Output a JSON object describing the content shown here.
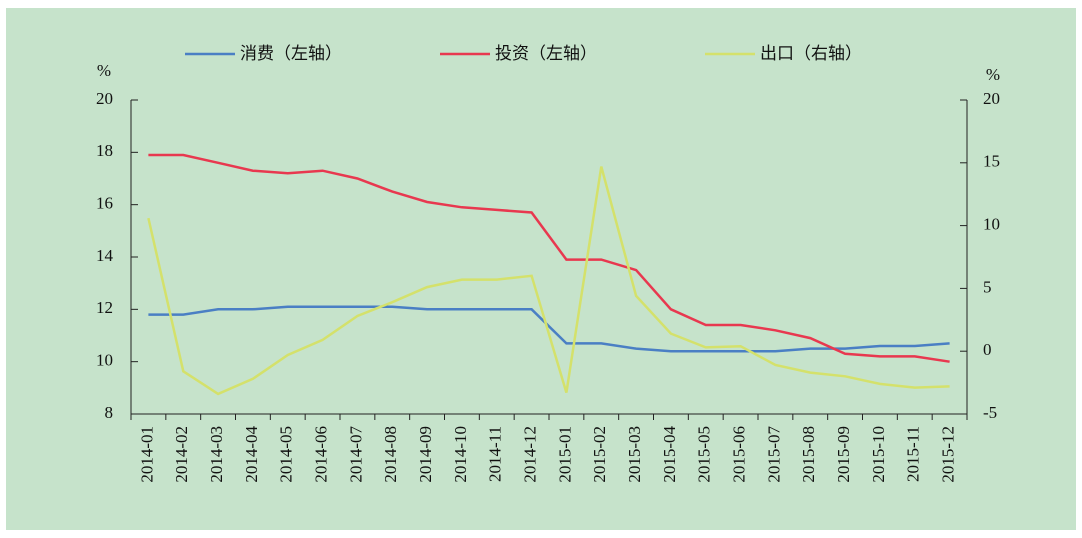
{
  "chart_data": {
    "type": "line",
    "categories": [
      "2014-01",
      "2014-02",
      "2014-03",
      "2014-04",
      "2014-05",
      "2014-06",
      "2014-07",
      "2014-08",
      "2014-09",
      "2014-10",
      "2014-11",
      "2014-12",
      "2015-01",
      "2015-02",
      "2015-03",
      "2015-04",
      "2015-05",
      "2015-06",
      "2015-07",
      "2015-08",
      "2015-09",
      "2015-10",
      "2015-11",
      "2015-12"
    ],
    "series": [
      {
        "name": "消费（左轴）",
        "color": "#4a7fc4",
        "values": [
          11.8,
          11.8,
          12.0,
          12.0,
          12.1,
          12.1,
          12.1,
          12.1,
          12.0,
          12.0,
          12.0,
          12.0,
          10.7,
          10.7,
          10.5,
          10.4,
          10.4,
          10.4,
          10.4,
          10.5,
          10.5,
          10.6,
          10.6,
          10.7
        ]
      },
      {
        "name": "投资（左轴）",
        "color": "#e8384f",
        "values": [
          17.9,
          17.9,
          17.6,
          17.3,
          17.2,
          17.3,
          17.0,
          16.5,
          16.1,
          15.9,
          15.8,
          15.7,
          13.9,
          13.9,
          13.5,
          12.0,
          11.4,
          11.4,
          11.2,
          10.9,
          10.3,
          10.2,
          10.2,
          10.0
        ]
      },
      {
        "name": "出口（右轴）",
        "color": "#d4e16b",
        "axis": "y2",
        "values": [
          10.6,
          -1.6,
          -3.4,
          -2.2,
          -0.3,
          0.9,
          2.8,
          3.9,
          5.1,
          5.7,
          5.7,
          6.0,
          -3.3,
          14.7,
          4.4,
          1.4,
          0.3,
          0.4,
          -1.1,
          -1.7,
          -2.0,
          -2.6,
          -2.9,
          -2.8
        ]
      }
    ],
    "y_unit": "%",
    "y2_unit": "%",
    "ylim": [
      8,
      20
    ],
    "yticks": [
      8,
      10,
      12,
      14,
      16,
      18,
      20
    ],
    "y2lim": [
      -5,
      20
    ],
    "y2ticks": [
      -5,
      0,
      5,
      10,
      15,
      20
    ],
    "legend": "top"
  }
}
